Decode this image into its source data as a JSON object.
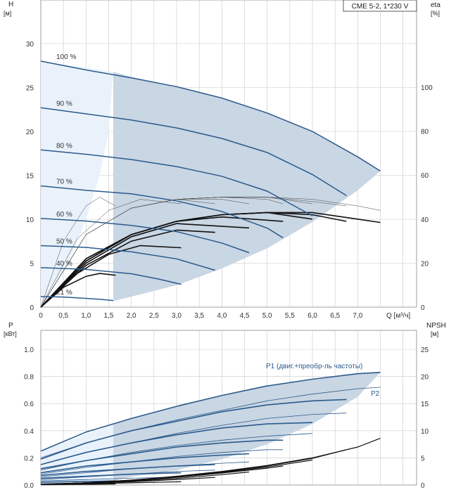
{
  "chart_data": [
    {
      "type": "line",
      "product_label": "CME 5-2, 1*230 V",
      "y_left": {
        "label": "H",
        "unit": "[м]",
        "ylim": [
          0,
          30
        ],
        "ticks": [
          "0",
          "5",
          "10",
          "15",
          "20",
          "25",
          "30"
        ]
      },
      "y_right": {
        "label": "eta",
        "unit": "[%]",
        "ylim": [
          0,
          120
        ],
        "ticks": [
          "0",
          "20",
          "40",
          "60",
          "80",
          "100"
        ]
      },
      "x": {
        "label": "Q [м³/ч]",
        "xlim": [
          0,
          8.3
        ],
        "ticks": [
          "0",
          "0,5",
          "1,0",
          "1,5",
          "2,0",
          "2,5",
          "3,0",
          "3,5",
          "4,0",
          "4,5",
          "5,0",
          "5,5",
          "6,0",
          "6,5",
          "7,0"
        ]
      },
      "grid": true,
      "speed_curves": [
        {
          "name": "100 %",
          "x": [
            0,
            1.0,
            2.0,
            3.0,
            4.0,
            5.0,
            6.0,
            7.0,
            7.5
          ],
          "y": [
            28.0,
            27.0,
            26.1,
            25.1,
            23.8,
            22.1,
            20.0,
            17.1,
            15.5
          ]
        },
        {
          "name": "90 %",
          "x": [
            0,
            1.0,
            2.0,
            3.0,
            4.0,
            5.0,
            6.0,
            6.75
          ],
          "y": [
            22.7,
            22.0,
            21.3,
            20.4,
            19.2,
            17.6,
            15.1,
            12.7
          ]
        },
        {
          "name": "80 %",
          "x": [
            0,
            1.0,
            2.0,
            3.0,
            4.0,
            5.0,
            6.0
          ],
          "y": [
            17.9,
            17.4,
            16.8,
            16.0,
            14.9,
            13.2,
            10.4
          ]
        },
        {
          "name": "70 %",
          "x": [
            0,
            1.0,
            2.0,
            3.0,
            4.0,
            5.0,
            5.35
          ],
          "y": [
            13.8,
            13.3,
            12.9,
            12.1,
            10.9,
            9.0,
            7.9
          ]
        },
        {
          "name": "60 %",
          "x": [
            0,
            1.0,
            2.0,
            3.0,
            4.0,
            4.6
          ],
          "y": [
            10.1,
            9.8,
            9.3,
            8.6,
            7.3,
            6.2
          ]
        },
        {
          "name": "50 %",
          "x": [
            0,
            1.0,
            2.0,
            3.0,
            3.85
          ],
          "y": [
            7.0,
            6.8,
            6.3,
            5.5,
            4.2
          ]
        },
        {
          "name": "40 %",
          "x": [
            0,
            1.0,
            2.0,
            2.6,
            3.1
          ],
          "y": [
            4.5,
            4.3,
            3.8,
            3.2,
            2.6
          ]
        },
        {
          "name": "21 %",
          "x": [
            0,
            0.5,
            1.0,
            1.3,
            1.6
          ],
          "y": [
            1.2,
            1.15,
            1.0,
            0.9,
            0.75
          ]
        }
      ],
      "efficiency_curves": [
        {
          "x": [
            0,
            0.5,
            1.0,
            1.3,
            1.65
          ],
          "eta": [
            0,
            9,
            14,
            15.3,
            14.5
          ]
        },
        {
          "x": [
            0,
            0.7,
            1.5,
            2.2,
            3.1
          ],
          "eta": [
            0,
            14,
            24,
            28,
            27
          ]
        },
        {
          "x": [
            0,
            1.0,
            2.0,
            3.0,
            3.85
          ],
          "eta": [
            0,
            19,
            30,
            35,
            34
          ]
        },
        {
          "x": [
            0,
            1.0,
            2.0,
            3.0,
            4.6
          ],
          "eta": [
            0,
            20,
            32,
            38,
            36
          ]
        },
        {
          "x": [
            0,
            1.0,
            2.0,
            3.0,
            4.0,
            5.35
          ],
          "eta": [
            0,
            21,
            33,
            39,
            41,
            39
          ]
        },
        {
          "x": [
            0,
            1.0,
            2.0,
            3.0,
            4.0,
            5.0,
            6.0
          ],
          "eta": [
            0,
            21,
            33,
            39,
            42,
            43,
            40
          ]
        },
        {
          "x": [
            0,
            1.0,
            2.0,
            3.0,
            4.0,
            5.0,
            6.0,
            6.75
          ],
          "eta": [
            0,
            22,
            33,
            39,
            42,
            43,
            42,
            39
          ]
        },
        {
          "x": [
            0,
            1.0,
            2.0,
            3.0,
            4.0,
            5.0,
            6.0,
            7.0,
            7.5
          ],
          "eta": [
            0,
            22,
            33,
            39,
            42,
            43,
            43,
            40,
            38.5
          ]
        }
      ],
      "efficiency_thin_curves": [
        {
          "x": [
            0,
            0.5,
            1.0,
            1.3,
            1.65
          ],
          "eta": [
            0,
            30,
            46,
            50,
            46
          ]
        },
        {
          "x": [
            0,
            0.8,
            1.5,
            2.2,
            3.1
          ],
          "eta": [
            0,
            31,
            44,
            49,
            47
          ]
        },
        {
          "x": [
            0,
            1.0,
            2.0,
            3.0,
            3.85
          ],
          "eta": [
            0,
            33,
            45,
            49,
            47
          ]
        },
        {
          "x": [
            0,
            1.0,
            2.0,
            3.0,
            4.0,
            4.6
          ],
          "eta": [
            0,
            33,
            45,
            49,
            49,
            47
          ]
        },
        {
          "x": [
            0,
            1.0,
            2.0,
            3.0,
            4.0,
            5.0,
            5.35
          ],
          "eta": [
            0,
            33,
            45,
            49,
            50,
            49,
            47
          ]
        },
        {
          "x": [
            0,
            1.0,
            2.0,
            3.0,
            4.0,
            5.0,
            6.0
          ],
          "eta": [
            0,
            33,
            45,
            49,
            50,
            50,
            47
          ]
        },
        {
          "x": [
            0,
            1.0,
            2.0,
            3.0,
            4.0,
            5.0,
            6.0,
            6.75
          ],
          "eta": [
            0,
            33,
            45,
            49,
            50,
            50,
            48,
            46
          ]
        },
        {
          "x": [
            0,
            1.0,
            2.0,
            3.0,
            4.0,
            5.0,
            6.0,
            7.0,
            7.5
          ],
          "eta": [
            0,
            33,
            45,
            49,
            50,
            50,
            49,
            46,
            44
          ]
        }
      ],
      "operating_area_bounds": {
        "upper_x": [
          1.6,
          2.0,
          3.0,
          4.0,
          5.0,
          6.0,
          7.0,
          7.5
        ],
        "upper_y": [
          26.8,
          26.2,
          25.1,
          23.8,
          22.1,
          20.0,
          17.1,
          15.5
        ],
        "lower_x": [
          7.5,
          7.0,
          6.0,
          5.0,
          4.0,
          3.0,
          2.0,
          1.65,
          1.6
        ],
        "lower_y": [
          15.5,
          13.3,
          9.7,
          6.7,
          4.4,
          2.5,
          1.2,
          0.75,
          0.7
        ],
        "left_x": [
          0,
          1.6,
          1.5,
          1.3,
          1.0,
          0.6,
          0.0
        ],
        "left_y": [
          28.0,
          26.8,
          20,
          15,
          10,
          5,
          0
        ]
      }
    },
    {
      "type": "line",
      "y_left": {
        "label": "P",
        "unit": "[кВт]",
        "ylim": [
          0,
          1.0
        ],
        "ticks": [
          "0.0",
          "0.2",
          "0.4",
          "0.6",
          "0.8",
          "1.0"
        ]
      },
      "y_right": {
        "label": "NPSH",
        "unit": "[м]",
        "ylim": [
          0,
          25
        ],
        "ticks": [
          "0",
          "5",
          "10",
          "15",
          "20",
          "25"
        ]
      },
      "x": {
        "xlim": [
          0,
          8.3
        ]
      },
      "grid": true,
      "annotations": [
        "P1 (двиг.+преобр-ль частоты)",
        "P2"
      ],
      "p1_curves": [
        {
          "x": [
            0,
            1.0,
            2.0,
            3.0,
            4.0,
            5.0,
            6.0,
            7.0,
            7.5
          ],
          "y": [
            0.25,
            0.39,
            0.49,
            0.58,
            0.66,
            0.73,
            0.78,
            0.82,
            0.83
          ]
        },
        {
          "x": [
            0,
            1.0,
            2.0,
            3.0,
            4.0,
            5.0,
            6.0,
            6.75
          ],
          "y": [
            0.19,
            0.31,
            0.4,
            0.47,
            0.54,
            0.59,
            0.62,
            0.63
          ]
        },
        {
          "x": [
            0,
            1.0,
            2.0,
            3.0,
            4.0,
            5.0,
            6.0
          ],
          "y": [
            0.15,
            0.24,
            0.31,
            0.37,
            0.42,
            0.45,
            0.46
          ]
        },
        {
          "x": [
            0,
            1.0,
            2.0,
            3.0,
            4.0,
            5.0,
            5.35
          ],
          "y": [
            0.12,
            0.18,
            0.23,
            0.28,
            0.31,
            0.33,
            0.33
          ]
        },
        {
          "x": [
            0,
            1.0,
            2.0,
            3.0,
            4.0,
            4.6
          ],
          "y": [
            0.09,
            0.14,
            0.17,
            0.2,
            0.22,
            0.23
          ]
        },
        {
          "x": [
            0,
            1.0,
            2.0,
            3.0,
            3.85
          ],
          "y": [
            0.07,
            0.1,
            0.12,
            0.14,
            0.15
          ]
        },
        {
          "x": [
            0,
            1.0,
            2.0,
            3.1
          ],
          "y": [
            0.05,
            0.065,
            0.08,
            0.09
          ]
        },
        {
          "x": [
            0,
            0.8,
            1.65
          ],
          "y": [
            0.02,
            0.025,
            0.03
          ]
        }
      ],
      "p2_curves": [
        {
          "x": [
            0,
            1.0,
            2.0,
            3.0,
            4.0,
            5.0,
            6.0,
            7.0,
            7.5
          ],
          "y": [
            0.2,
            0.31,
            0.4,
            0.48,
            0.55,
            0.62,
            0.67,
            0.71,
            0.72
          ]
        },
        {
          "x": [
            0,
            1.0,
            2.0,
            3.0,
            4.0,
            5.0,
            6.0,
            6.75
          ],
          "y": [
            0.15,
            0.24,
            0.31,
            0.38,
            0.44,
            0.49,
            0.52,
            0.53
          ]
        },
        {
          "x": [
            0,
            1.0,
            2.0,
            3.0,
            4.0,
            5.0,
            6.0
          ],
          "y": [
            0.11,
            0.18,
            0.24,
            0.29,
            0.33,
            0.36,
            0.38
          ]
        },
        {
          "x": [
            0,
            1.0,
            2.0,
            3.0,
            4.0,
            5.0,
            5.35
          ],
          "y": [
            0.08,
            0.13,
            0.17,
            0.21,
            0.24,
            0.26,
            0.26
          ]
        },
        {
          "x": [
            0,
            1.0,
            2.0,
            3.0,
            4.0,
            4.6
          ],
          "y": [
            0.06,
            0.09,
            0.12,
            0.14,
            0.16,
            0.17
          ]
        },
        {
          "x": [
            0,
            1.0,
            2.0,
            3.0,
            3.85
          ],
          "y": [
            0.04,
            0.06,
            0.08,
            0.1,
            0.11
          ]
        },
        {
          "x": [
            0,
            1.0,
            2.0,
            3.1
          ],
          "y": [
            0.03,
            0.04,
            0.05,
            0.06
          ]
        },
        {
          "x": [
            0,
            0.8,
            1.65
          ],
          "y": [
            0.01,
            0.015,
            0.02
          ]
        }
      ],
      "npsh_curves": [
        {
          "x": [
            0,
            1.0,
            2.0,
            3.0,
            4.0,
            5.0,
            6.0,
            7.0,
            7.5
          ],
          "y": [
            0.1,
            0.4,
            0.9,
            1.6,
            2.5,
            3.6,
            5.0,
            7.0,
            8.6
          ]
        },
        {
          "x": [
            0,
            1.0,
            2.0,
            3.0,
            4.0,
            5.0,
            6.0,
            6.75
          ],
          "y": [
            0.1,
            0.4,
            0.9,
            1.5,
            2.4,
            3.5,
            4.9,
            6.5
          ]
        },
        {
          "x": [
            0,
            1.0,
            2.0,
            3.0,
            4.0,
            5.0,
            6.0
          ],
          "y": [
            0.1,
            0.4,
            0.9,
            1.5,
            2.3,
            3.3,
            4.6
          ]
        },
        {
          "x": [
            0,
            1.0,
            2.0,
            3.0,
            4.0,
            5.0,
            5.35
          ],
          "y": [
            0.1,
            0.4,
            0.8,
            1.4,
            2.2,
            3.1,
            3.5
          ]
        },
        {
          "x": [
            0,
            1.0,
            2.0,
            3.0,
            4.0,
            4.6
          ],
          "y": [
            0.1,
            0.3,
            0.7,
            1.2,
            1.9,
            2.4
          ]
        },
        {
          "x": [
            0,
            1.0,
            2.0,
            3.0,
            3.85
          ],
          "y": [
            0.1,
            0.3,
            0.6,
            1.0,
            1.4
          ]
        },
        {
          "x": [
            0,
            1.0,
            2.0,
            3.1
          ],
          "y": [
            0.1,
            0.2,
            0.4,
            0.6
          ]
        },
        {
          "x": [
            0,
            0.8,
            1.65
          ],
          "y": [
            0.05,
            0.1,
            0.2
          ]
        }
      ],
      "operating_area_bounds": {
        "upper_x": [
          1.6,
          2.0,
          3.0,
          4.0,
          5.0,
          6.0,
          7.0,
          7.5
        ],
        "upper_y": [
          0.45,
          0.49,
          0.58,
          0.66,
          0.73,
          0.78,
          0.82,
          0.83
        ],
        "lower_x": [
          7.5,
          7.0,
          6.0,
          5.0,
          4.0,
          3.0,
          2.0,
          1.6
        ],
        "lower_y": [
          0.83,
          0.65,
          0.45,
          0.3,
          0.19,
          0.11,
          0.06,
          0.03
        ],
        "left_x": [
          0,
          1.6,
          1.6,
          0
        ],
        "left_y": [
          0.25,
          0.45,
          0.03,
          0.02
        ]
      }
    }
  ],
  "colors": {
    "dark_blue": "#2b5a8c",
    "area_fill": "#c9d6e3",
    "area_light": "#e9f2fb",
    "black": "#111111",
    "grid": "#c8c8c8"
  }
}
